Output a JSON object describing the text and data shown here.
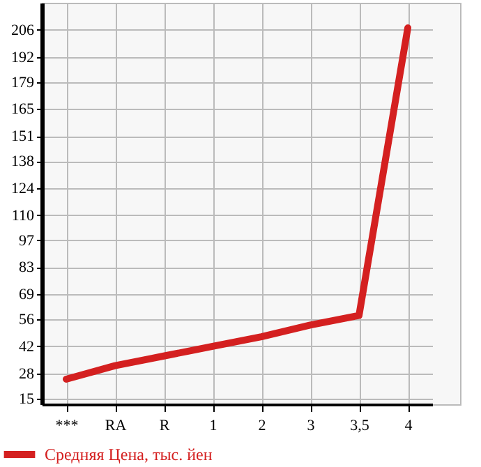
{
  "chart_data": {
    "type": "line",
    "categories": [
      "***",
      "RA",
      "R",
      "1",
      "2",
      "3",
      "3,5",
      "4"
    ],
    "series": [
      {
        "name": "Средняя Цена, тыс. йен",
        "color": "#d42020",
        "values": [
          25,
          32,
          37,
          42,
          47,
          53,
          58,
          207
        ]
      }
    ],
    "ylim": [
      12,
      220
    ],
    "yticks": [
      15,
      28,
      42,
      56,
      69,
      83,
      97,
      110,
      124,
      138,
      151,
      165,
      179,
      192,
      206
    ],
    "grid": true,
    "legend": "bottom left",
    "marker": "none",
    "line_style": "solid"
  }
}
